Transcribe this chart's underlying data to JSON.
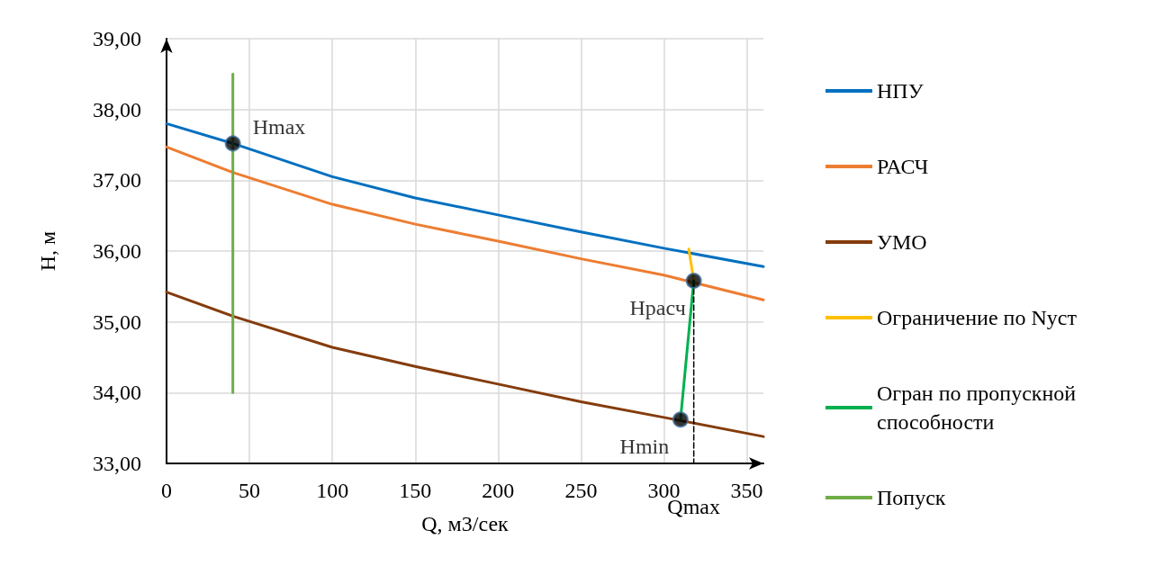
{
  "chart_data": {
    "type": "line",
    "xlabel": "Q, м3/сек",
    "ylabel": "H, м",
    "xlim": [
      0,
      360
    ],
    "xticks": [
      0,
      50,
      100,
      150,
      200,
      250,
      300,
      350
    ],
    "ylim": [
      33,
      39
    ],
    "yticks": [
      {
        "value": 33,
        "label": "33,00"
      },
      {
        "value": 34,
        "label": "34,00"
      },
      {
        "value": 35,
        "label": "35,00"
      },
      {
        "value": 36,
        "label": "36,00"
      },
      {
        "value": 37,
        "label": "37,00"
      },
      {
        "value": 38,
        "label": "38,00"
      },
      {
        "value": 39,
        "label": "39,00"
      }
    ],
    "grid": true,
    "legend": "right",
    "marker": "none",
    "line_style": "solid",
    "series": [
      {
        "name": "НПУ",
        "color": "#0070c0",
        "x": [
          0,
          40,
          100,
          150,
          200,
          250,
          300,
          360
        ],
        "values": [
          37.8,
          37.52,
          37.05,
          36.75,
          36.51,
          36.27,
          36.04,
          35.78
        ]
      },
      {
        "name": "РАСЧ",
        "color": "#ed7d31",
        "x": [
          0,
          40,
          100,
          150,
          200,
          250,
          300,
          360
        ],
        "values": [
          37.47,
          37.11,
          36.66,
          36.38,
          36.14,
          35.89,
          35.66,
          35.31
        ]
      },
      {
        "name": "УМО",
        "color": "#843c0c",
        "x": [
          0,
          40,
          100,
          150,
          200,
          250,
          300,
          360
        ],
        "values": [
          35.42,
          35.08,
          34.64,
          34.37,
          34.12,
          33.87,
          33.65,
          33.38
        ]
      },
      {
        "name": "Ограничение по Nуст",
        "color": "#ffc000",
        "x": [
          315,
          318
        ],
        "values": [
          36.03,
          35.58
        ]
      },
      {
        "name": "Огран по пропускной способности",
        "color": "#00b050",
        "x": [
          318,
          310
        ],
        "values": [
          35.58,
          33.62
        ]
      },
      {
        "name": "Попуск",
        "color": "#70ad47",
        "x": [
          40,
          40
        ],
        "values": [
          38.5,
          34
        ]
      },
      {
        "type": "line",
        "color": "#000000",
        "line_style": "dashed",
        "x": [
          318,
          318
        ],
        "values": [
          35.58,
          33
        ]
      },
      {
        "type": "scatter",
        "marker": "circle",
        "color": "#000000",
        "x": [
          40,
          318,
          310
        ],
        "values": [
          37.52,
          35.58,
          33.62
        ],
        "value_labels": [
          "Hmax",
          "Hрасч",
          "Hmin"
        ]
      }
    ],
    "annotations": [
      {
        "text": "Qmax",
        "x": 318,
        "y": 33
      }
    ]
  }
}
